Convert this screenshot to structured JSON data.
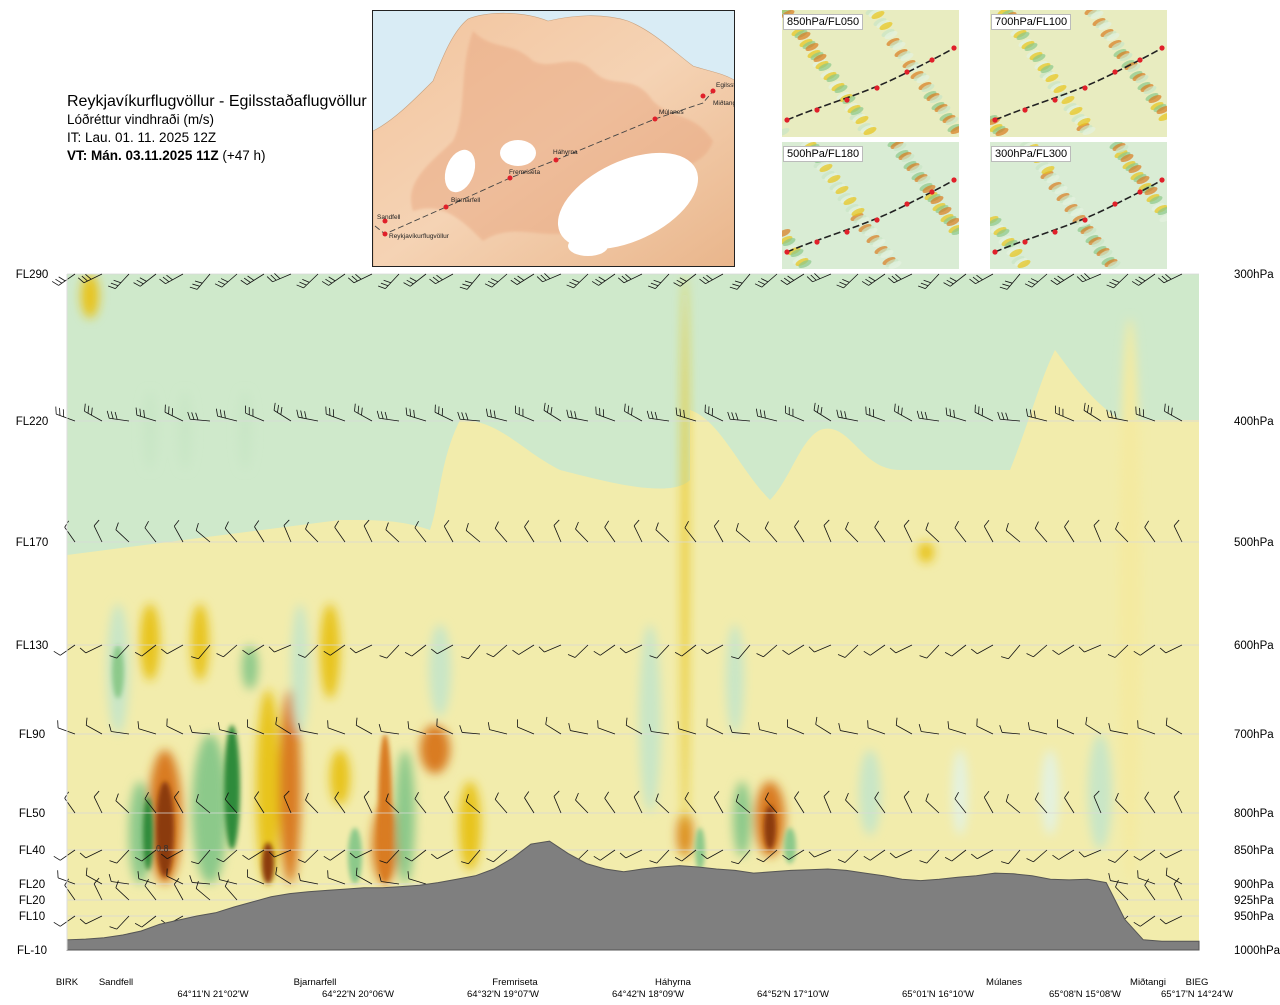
{
  "header": {
    "route": "Reykjavíkurflugvöllur - Egilsstaðaflugvöllur",
    "variable": "Lóðréttur vindhraði (m/s)",
    "init_time": "IT: Lau. 01. 11. 2025 12Z",
    "valid_prefix": "VT: Mán. 03.11.2025 11Z",
    "valid_offset": "(+47 h)"
  },
  "map": {
    "stations": [
      "Reykjavíkurflugvöllur",
      "Sandfell",
      "Bjarnarfell",
      "Fremriseta",
      "Háhyrna",
      "Múlanes",
      "Miðtangi",
      "Egilsstaðir"
    ]
  },
  "thumbnails": [
    {
      "label": "850hPa/FL050"
    },
    {
      "label": "700hPa/FL100"
    },
    {
      "label": "500hPa/FL180"
    },
    {
      "label": "300hPa/FL300"
    }
  ],
  "chart_data": {
    "type": "heatmap",
    "title": "Lóðréttur vindhraði (m/s)",
    "y_axis_left": [
      "FL290",
      "FL220",
      "FL170",
      "FL130",
      "FL90",
      "FL50",
      "FL40",
      "FL20",
      "FL20",
      "FL10",
      "FL-10"
    ],
    "y_axis_right": [
      "300hPa",
      "400hPa",
      "500hPa",
      "600hPa",
      "700hPa",
      "800hPa",
      "850hPa",
      "900hPa",
      "925hPa",
      "950hPa",
      "1000hPa"
    ],
    "pressure_levels_hpa": [
      300,
      400,
      500,
      600,
      700,
      800,
      850,
      900,
      925,
      950,
      1000
    ],
    "x_stations": [
      "BIRK",
      "Sandfell",
      "Bjarnarfell",
      "Fremriseta",
      "Háhyrna",
      "Múlanes",
      "Miðtangi",
      "BIEG"
    ],
    "x_coords": [
      "64°11'N 21°02'W",
      "64°22'N 20°06'W",
      "64°32'N 19°07'W",
      "64°42'N 18°09'W",
      "64°52'N 17°10'W",
      "65°01'N 16°10'W",
      "65°08'N 15°08'W",
      "65°17'N 14°24'W"
    ],
    "annotation": "0.8",
    "terrain_hpa": [
      985,
      984,
      982,
      978,
      972,
      962,
      956,
      950,
      945,
      936,
      928,
      920,
      915,
      912,
      910,
      908,
      906,
      906,
      904,
      902,
      898,
      893,
      888,
      878,
      862,
      842,
      838,
      855,
      870,
      878,
      882,
      878,
      875,
      873,
      875,
      878,
      880,
      884,
      882,
      880,
      879,
      878,
      880,
      884,
      888,
      893,
      895,
      893,
      890,
      888,
      884,
      885,
      888,
      893,
      894,
      893,
      898,
      955,
      985,
      987,
      987,
      987
    ],
    "vertical_velocity_levels": [
      -0.8,
      -0.4,
      -0.2,
      -0.1,
      -0.05,
      0.05,
      0.1,
      0.2,
      0.4,
      0.8
    ],
    "colors": {
      "strong_down": "#8b3a10",
      "down": "#d97c20",
      "weak_down": "#e8c41a",
      "light_down": "#f4eaa0",
      "near_zero": "#fbf9dc",
      "light_up": "#e4f2df",
      "weak_up": "#c9e6c6",
      "up": "#8cc98a",
      "strong_up": "#2e8b3a",
      "terrain": "#7f7f7f"
    }
  }
}
